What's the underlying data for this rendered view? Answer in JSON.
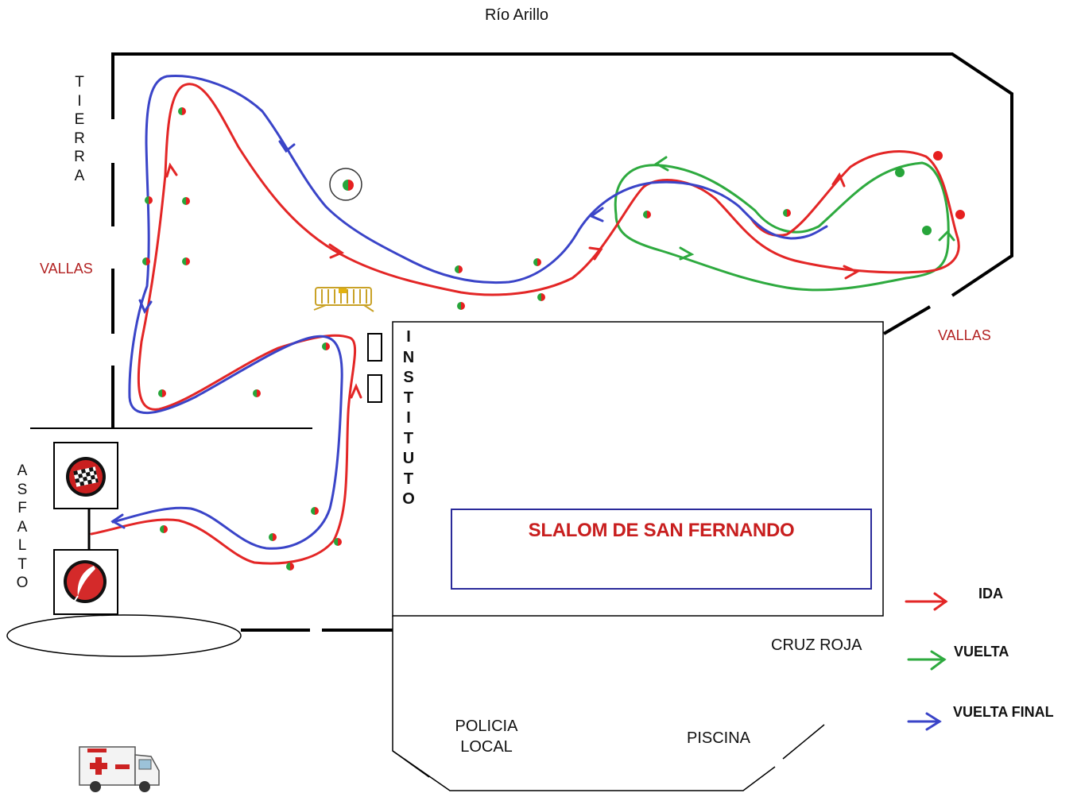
{
  "labels": {
    "river": "Río Arillo",
    "tierra": "T\nI\nE\nR\nR\nA",
    "asfalto": "A\nS\nF\nA\nL\nT\nO",
    "vallas_left": "VALLAS",
    "vallas_right": "VALLAS",
    "instituto": "I\nN\nS\nT\nI\nT\nU\nT\nO",
    "cruz_roja": "CRUZ ROJA",
    "policia_local": "POLICIA\nLOCAL",
    "piscina": "PISCINA"
  },
  "title": "SLALOM DE SAN FERNANDO",
  "legend": [
    {
      "label": "IDA",
      "color": "#e32626"
    },
    {
      "label": "VUELTA",
      "color": "#2eaa3f"
    },
    {
      "label": "VUELTA FINAL",
      "color": "#3a44c8"
    }
  ],
  "icons": {
    "start": "checkered-flag-icon",
    "finish": "quill-icon",
    "ambulance": "ambulance-icon",
    "barrier": "barrier-icon",
    "cone": "cone-icon"
  },
  "colors": {
    "route_ida": "#e32626",
    "route_vuelta": "#2eaa3f",
    "route_final": "#3a44c8",
    "cone_red": "#e62020",
    "cone_green": "#27a53a",
    "vallas_text": "#b22222"
  }
}
